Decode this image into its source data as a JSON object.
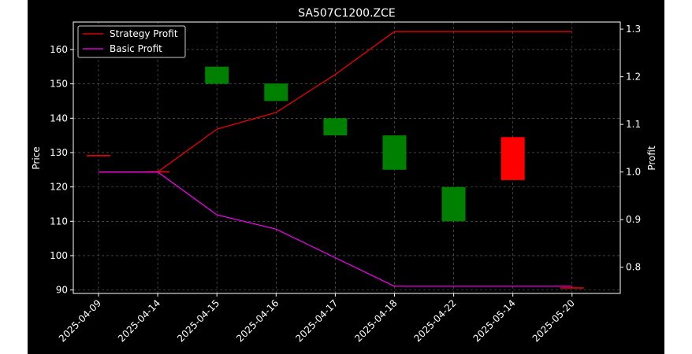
{
  "chart_data": {
    "type": "candlestick",
    "title": "SA507C1200.ZCE",
    "xlabel": "",
    "ylabel": "Price",
    "y2label": "Profit",
    "categories": [
      "2025-04-09",
      "2025-04-14",
      "2025-04-15",
      "2025-04-16",
      "2025-04-17",
      "2025-04-18",
      "2025-04-22",
      "2025-05-14",
      "2025-05-20"
    ],
    "ylim": [
      89,
      168
    ],
    "y2lim": [
      0.745,
      1.315
    ],
    "yticks": [
      90,
      100,
      110,
      120,
      130,
      140,
      150,
      160
    ],
    "y2ticks": [
      0.8,
      0.9,
      1.0,
      1.1,
      1.2,
      1.3
    ],
    "grid": true,
    "legend_position": "top-left",
    "candles": [
      {
        "date": "2025-04-09",
        "open": 129.1,
        "close": 129.1,
        "color": "#ff0000"
      },
      {
        "date": "2025-04-14",
        "open": 124.4,
        "close": 124.4,
        "color": "#ff0000"
      },
      {
        "date": "2025-04-15",
        "open": 150.0,
        "close": 155.0,
        "color": "#008000"
      },
      {
        "date": "2025-04-16",
        "open": 145.0,
        "close": 150.1,
        "color": "#008000"
      },
      {
        "date": "2025-04-17",
        "open": 135.0,
        "close": 140.0,
        "color": "#008000"
      },
      {
        "date": "2025-04-18",
        "open": 125.0,
        "close": 135.0,
        "color": "#008000"
      },
      {
        "date": "2025-04-22",
        "open": 110.0,
        "close": 120.0,
        "color": "#008000"
      },
      {
        "date": "2025-05-14",
        "open": 134.5,
        "close": 122.0,
        "color": "#ff0000"
      },
      {
        "date": "2025-05-20",
        "open": 90.6,
        "close": 90.6,
        "color": "#ff0000"
      }
    ],
    "series": [
      {
        "name": "Strategy Profit",
        "color": "#ff0000",
        "axis": "right",
        "values": [
          1.0,
          1.0,
          1.09,
          1.125,
          1.205,
          1.295,
          1.295,
          1.295,
          1.295
        ]
      },
      {
        "name": "Basic Profit",
        "color": "#ff00ff",
        "axis": "right",
        "values": [
          1.0,
          1.0,
          0.91,
          0.88,
          0.82,
          0.76,
          0.76,
          0.76,
          0.76
        ]
      }
    ]
  }
}
